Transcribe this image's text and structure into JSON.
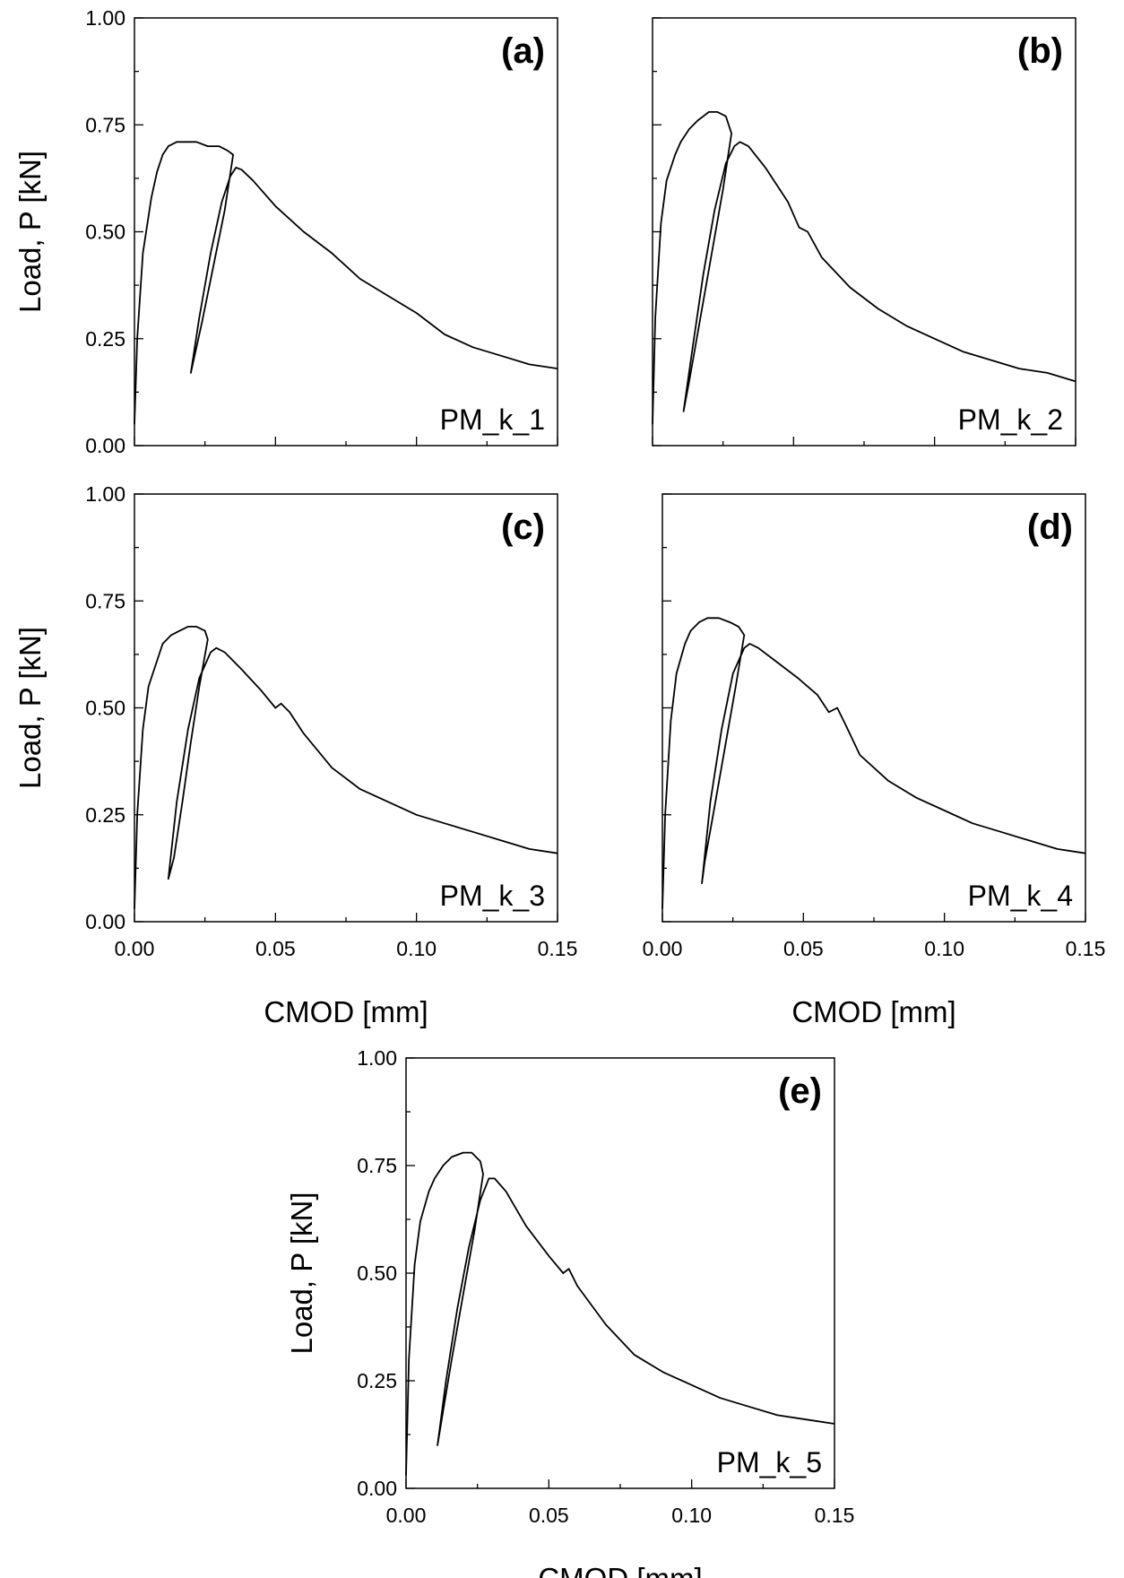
{
  "chart_data": [
    {
      "type": "line",
      "panel_label": "(a)",
      "specimen": "PM_k_1",
      "ylabel": "Load, P [kN]",
      "xlabel": "",
      "xlim": [
        0,
        0.15
      ],
      "ylim": [
        0,
        1.0
      ],
      "xticks": [],
      "yticks": [
        "0.00",
        "0.25",
        "0.50",
        "0.75",
        "1.00"
      ],
      "series": [
        {
          "x": [
            0.0,
            0.001,
            0.003,
            0.006,
            0.008,
            0.01,
            0.012,
            0.015,
            0.018,
            0.022,
            0.026,
            0.03,
            0.033,
            0.035,
            0.032,
            0.028,
            0.024,
            0.02,
            0.023,
            0.027,
            0.031,
            0.034,
            0.036,
            0.038,
            0.042,
            0.05,
            0.06,
            0.07,
            0.08,
            0.09,
            0.1,
            0.11,
            0.12,
            0.13,
            0.14,
            0.15
          ],
          "y": [
            0.05,
            0.25,
            0.45,
            0.58,
            0.64,
            0.68,
            0.7,
            0.71,
            0.71,
            0.71,
            0.7,
            0.7,
            0.69,
            0.68,
            0.55,
            0.42,
            0.29,
            0.17,
            0.3,
            0.45,
            0.57,
            0.63,
            0.65,
            0.645,
            0.62,
            0.56,
            0.5,
            0.45,
            0.39,
            0.35,
            0.31,
            0.26,
            0.23,
            0.21,
            0.19,
            0.18
          ]
        }
      ]
    },
    {
      "type": "line",
      "panel_label": "(b)",
      "specimen": "PM_k_2",
      "ylabel": "",
      "xlabel": "",
      "xlim": [
        0,
        0.15
      ],
      "ylim": [
        0,
        1.0
      ],
      "xticks": [],
      "yticks": [],
      "series": [
        {
          "x": [
            0.0,
            0.001,
            0.003,
            0.005,
            0.008,
            0.01,
            0.013,
            0.016,
            0.02,
            0.023,
            0.026,
            0.028,
            0.025,
            0.021,
            0.017,
            0.013,
            0.011,
            0.014,
            0.018,
            0.022,
            0.026,
            0.029,
            0.031,
            0.034,
            0.04,
            0.048,
            0.052,
            0.055,
            0.06,
            0.07,
            0.08,
            0.09,
            0.1,
            0.11,
            0.12,
            0.13,
            0.14,
            0.15
          ],
          "y": [
            0.05,
            0.3,
            0.52,
            0.62,
            0.68,
            0.71,
            0.74,
            0.76,
            0.78,
            0.78,
            0.77,
            0.73,
            0.6,
            0.45,
            0.3,
            0.15,
            0.08,
            0.22,
            0.4,
            0.55,
            0.66,
            0.7,
            0.71,
            0.7,
            0.65,
            0.57,
            0.51,
            0.5,
            0.44,
            0.37,
            0.32,
            0.28,
            0.25,
            0.22,
            0.2,
            0.18,
            0.17,
            0.15
          ]
        }
      ]
    },
    {
      "type": "line",
      "panel_label": "(c)",
      "specimen": "PM_k_3",
      "ylabel": "Load, P [kN]",
      "xlabel": "CMOD [mm]",
      "xlim": [
        0,
        0.15
      ],
      "ylim": [
        0,
        1.0
      ],
      "xticks": [
        "0.00",
        "0.05",
        "0.10",
        "0.15"
      ],
      "yticks": [
        "0.00",
        "0.25",
        "0.50",
        "0.75",
        "1.00"
      ],
      "series": [
        {
          "x": [
            0.0,
            0.001,
            0.003,
            0.005,
            0.008,
            0.01,
            0.013,
            0.016,
            0.019,
            0.022,
            0.025,
            0.026,
            0.023,
            0.02,
            0.017,
            0.014,
            0.012,
            0.015,
            0.019,
            0.023,
            0.027,
            0.029,
            0.032,
            0.038,
            0.045,
            0.05,
            0.052,
            0.055,
            0.06,
            0.07,
            0.08,
            0.09,
            0.1,
            0.11,
            0.12,
            0.13,
            0.14,
            0.15
          ],
          "y": [
            0.03,
            0.25,
            0.45,
            0.55,
            0.61,
            0.65,
            0.67,
            0.68,
            0.69,
            0.69,
            0.68,
            0.66,
            0.55,
            0.42,
            0.28,
            0.15,
            0.1,
            0.28,
            0.45,
            0.57,
            0.63,
            0.64,
            0.63,
            0.59,
            0.54,
            0.5,
            0.51,
            0.49,
            0.44,
            0.36,
            0.31,
            0.28,
            0.25,
            0.23,
            0.21,
            0.19,
            0.17,
            0.16
          ]
        }
      ]
    },
    {
      "type": "line",
      "panel_label": "(d)",
      "specimen": "PM_k_4",
      "ylabel": "",
      "xlabel": "CMOD [mm]",
      "xlim": [
        0,
        0.15
      ],
      "ylim": [
        0,
        1.0
      ],
      "xticks": [
        "0.00",
        "0.05",
        "0.10",
        "0.15"
      ],
      "yticks": [],
      "series": [
        {
          "x": [
            0.0,
            0.001,
            0.003,
            0.005,
            0.008,
            0.01,
            0.013,
            0.016,
            0.02,
            0.024,
            0.027,
            0.029,
            0.026,
            0.022,
            0.018,
            0.015,
            0.014,
            0.017,
            0.021,
            0.025,
            0.029,
            0.031,
            0.034,
            0.04,
            0.048,
            0.055,
            0.059,
            0.062,
            0.065,
            0.07,
            0.08,
            0.09,
            0.1,
            0.11,
            0.12,
            0.13,
            0.14,
            0.15
          ],
          "y": [
            0.03,
            0.25,
            0.47,
            0.58,
            0.65,
            0.68,
            0.7,
            0.71,
            0.71,
            0.7,
            0.69,
            0.67,
            0.55,
            0.4,
            0.25,
            0.14,
            0.09,
            0.28,
            0.45,
            0.58,
            0.64,
            0.65,
            0.64,
            0.61,
            0.57,
            0.53,
            0.49,
            0.5,
            0.46,
            0.39,
            0.33,
            0.29,
            0.26,
            0.23,
            0.21,
            0.19,
            0.17,
            0.16
          ]
        }
      ]
    },
    {
      "type": "line",
      "panel_label": "(e)",
      "specimen": "PM_k_5",
      "ylabel": "Load, P [kN]",
      "xlabel": "CMOD [mm]",
      "xlim": [
        0,
        0.15
      ],
      "ylim": [
        0,
        1.0
      ],
      "xticks": [
        "0.00",
        "0.05",
        "0.10",
        "0.15"
      ],
      "yticks": [
        "0.00",
        "0.25",
        "0.50",
        "0.75",
        "1.00"
      ],
      "series": [
        {
          "x": [
            0.0,
            0.001,
            0.003,
            0.005,
            0.008,
            0.01,
            0.013,
            0.016,
            0.02,
            0.023,
            0.026,
            0.027,
            0.024,
            0.02,
            0.016,
            0.013,
            0.011,
            0.014,
            0.018,
            0.022,
            0.026,
            0.029,
            0.031,
            0.035,
            0.042,
            0.05,
            0.055,
            0.057,
            0.06,
            0.07,
            0.08,
            0.09,
            0.1,
            0.11,
            0.12,
            0.13,
            0.14,
            0.15
          ],
          "y": [
            0.03,
            0.3,
            0.52,
            0.62,
            0.69,
            0.72,
            0.75,
            0.77,
            0.78,
            0.78,
            0.76,
            0.73,
            0.6,
            0.45,
            0.3,
            0.18,
            0.1,
            0.25,
            0.42,
            0.56,
            0.67,
            0.72,
            0.72,
            0.69,
            0.61,
            0.54,
            0.5,
            0.51,
            0.47,
            0.38,
            0.31,
            0.27,
            0.24,
            0.21,
            0.19,
            0.17,
            0.16,
            0.15
          ]
        }
      ]
    }
  ]
}
